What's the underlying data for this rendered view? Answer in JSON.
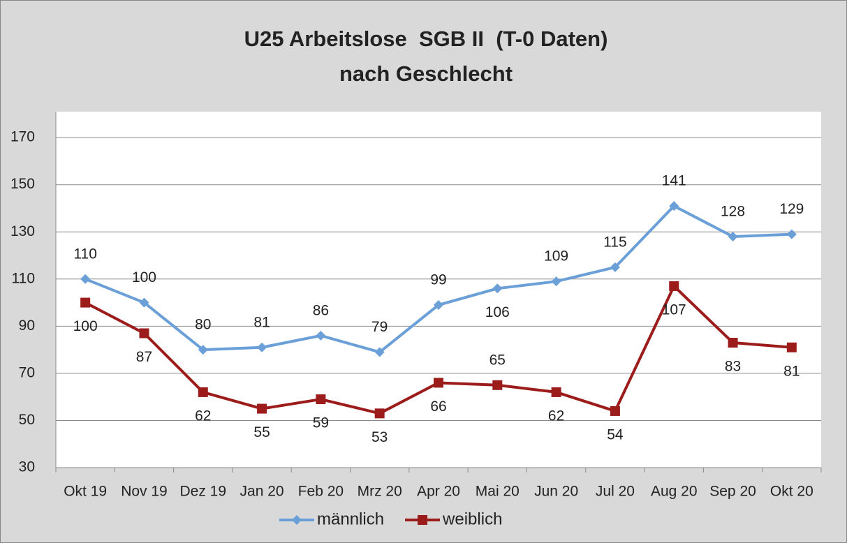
{
  "chart_data": {
    "type": "line",
    "title": [
      "U25 Arbeitslose  SGB II  (T-0 Daten)",
      "nach Geschlecht"
    ],
    "categories": [
      "Okt 19",
      "Nov 19",
      "Dez 19",
      "Jan 20",
      "Feb 20",
      "Mrz 20",
      "Apr 20",
      "Mai 20",
      "Jun 20",
      "Jul 20",
      "Aug 20",
      "Sep 20",
      "Okt 20"
    ],
    "series": [
      {
        "name": "männlich",
        "color": "#6a9fd8",
        "marker": "diamond",
        "values": [
          110,
          100,
          80,
          81,
          86,
          79,
          99,
          106,
          109,
          115,
          141,
          128,
          129
        ]
      },
      {
        "name": "weiblich",
        "color": "#9c1b1b",
        "marker": "square",
        "values": [
          100,
          87,
          62,
          55,
          59,
          53,
          66,
          65,
          62,
          54,
          107,
          83,
          81
        ]
      }
    ],
    "ylim": [
      30,
      181
    ],
    "yticks": [
      30,
      50,
      70,
      90,
      110,
      130,
      150,
      170
    ],
    "grid": true,
    "legend": "bottom"
  }
}
